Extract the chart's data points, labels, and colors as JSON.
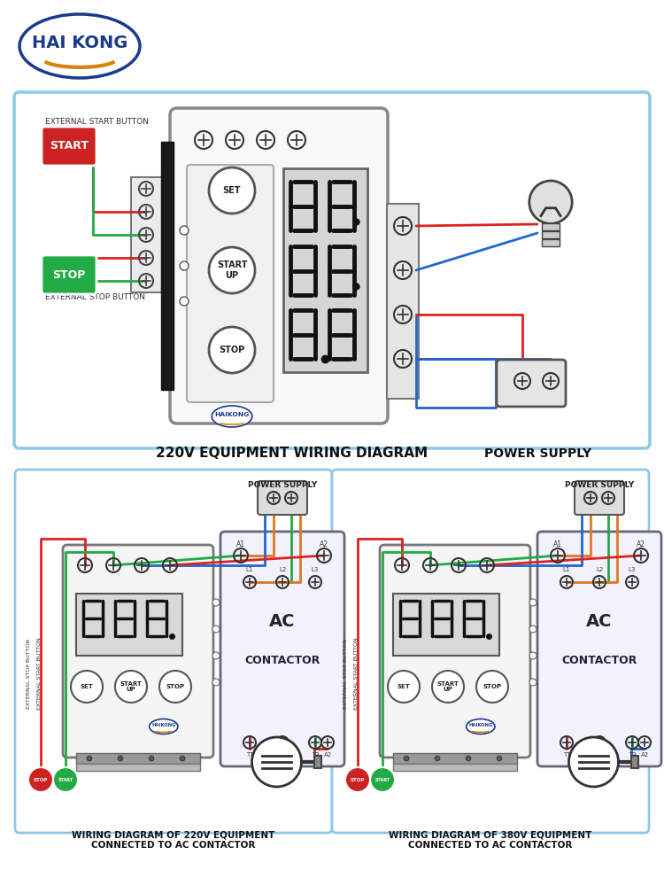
{
  "bg_color": "#ffffff",
  "border_color": "#8ec8e8",
  "haikong_color": "#1a3a8c",
  "haikong_accent": "#d4840a",
  "start_btn_color": "#cc2222",
  "stop_btn_color": "#22aa44",
  "wire_red": "#dd2222",
  "wire_blue": "#2266cc",
  "wire_green": "#22aa44",
  "wire_orange": "#e07820",
  "title_main": "220V EQUIPMENT WIRING DIAGRAM",
  "title_power": "POWER SUPPLY",
  "title_220": "WIRING DIAGRAM OF 220V EQUIPMENT\nCONNECTED TO AC CONTACTOR",
  "title_380": "WIRING DIAGRAM OF 380V EQUIPMENT\nCONNECTED TO AC CONTACTOR"
}
